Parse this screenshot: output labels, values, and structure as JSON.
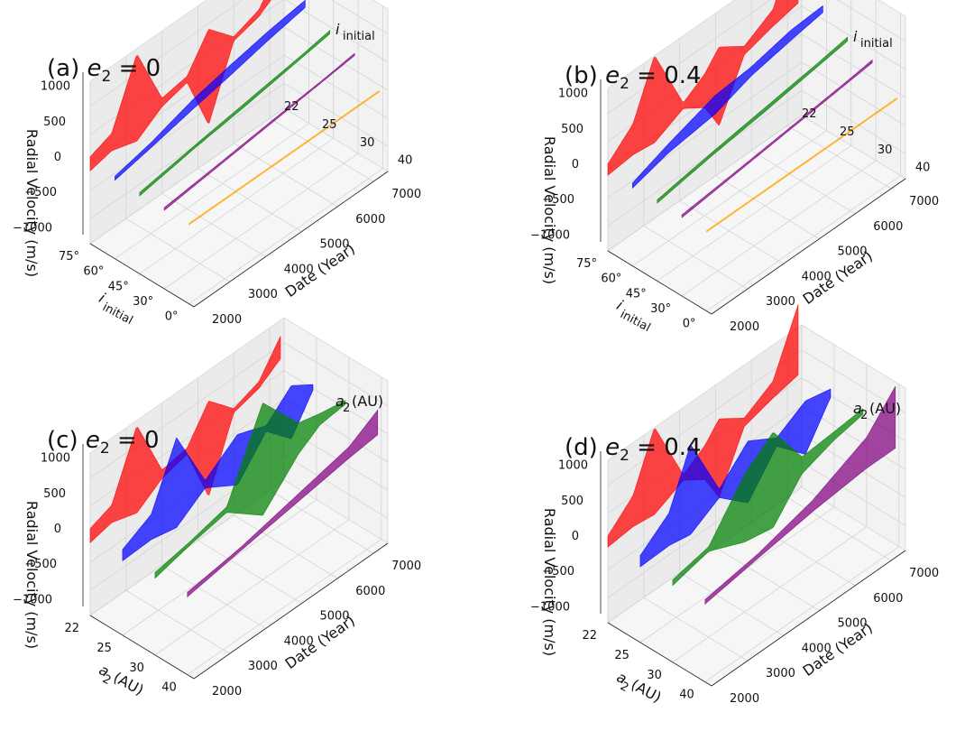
{
  "chart_data": [
    {
      "id": "a",
      "type": "3d-ribbon",
      "title": "(a) e₂ = 0",
      "panel_label": "(a)",
      "param_symbol": "e",
      "param_sub": "2",
      "param_value": "0",
      "zlabel": "Radial Velocity (m/s)",
      "xlabel": "Date (Year)",
      "ylabel_main": "i",
      "ylabel_sub": "initial",
      "ylabel_unit": "",
      "zticks": [
        "1000",
        "500",
        "0",
        "−500",
        "−1000"
      ],
      "zlim": [
        -1300,
        1300
      ],
      "xticks": [
        "2000",
        "3000",
        "4000",
        "5000",
        "6000",
        "7000"
      ],
      "xlim": [
        2000,
        7400
      ],
      "yticks": [
        "75°",
        "60°",
        "45°",
        "30°",
        "0°"
      ],
      "series": [
        {
          "name": "75°",
          "color": "#ff0000",
          "envelope": [
            [
              2000,
              -150,
              100
            ],
            [
              2600,
              -60,
              250
            ],
            [
              3300,
              -200,
              1350
            ],
            [
              4000,
              100,
              250
            ],
            [
              4700,
              220,
              330
            ],
            [
              5300,
              -800,
              900
            ],
            [
              6000,
              380,
              450
            ],
            [
              6700,
              500,
              620
            ],
            [
              7300,
              760,
              1160
            ]
          ]
        },
        {
          "name": "60°",
          "color": "#0000ff",
          "envelope": [
            [
              2000,
              -50,
              20
            ],
            [
              3000,
              80,
              170
            ],
            [
              4200,
              250,
              420
            ],
            [
              5200,
              380,
              560
            ],
            [
              6300,
              540,
              700
            ],
            [
              7300,
              660,
              790
            ]
          ]
        },
        {
          "name": "45°",
          "color": "#008000",
          "envelope": [
            [
              2000,
              -60,
              0
            ],
            [
              3500,
              100,
              150
            ],
            [
              5000,
              230,
              290
            ],
            [
              6500,
              380,
              430
            ],
            [
              7300,
              460,
              520
            ]
          ]
        },
        {
          "name": "30°",
          "color": "#800080",
          "envelope": [
            [
              2000,
              -50,
              0
            ],
            [
              3500,
              60,
              100
            ],
            [
              5000,
              170,
              210
            ],
            [
              6500,
              280,
              310
            ],
            [
              7300,
              340,
              380
            ]
          ]
        },
        {
          "name": "0°",
          "color": "#ffa500",
          "envelope": [
            [
              2000,
              -40,
              -15
            ],
            [
              7300,
              -40,
              -15
            ]
          ]
        }
      ]
    },
    {
      "id": "b",
      "type": "3d-ribbon",
      "title": "(b) e₂ = 0.4",
      "panel_label": "(b)",
      "param_symbol": "e",
      "param_sub": "2",
      "param_value": "0.4",
      "zlabel": "Radial Velocity (m/s)",
      "xlabel": "Date (Year)",
      "ylabel_main": "i",
      "ylabel_sub": "initial",
      "ylabel_unit": "",
      "zticks": [
        "1000",
        "500",
        "0",
        "−500",
        "−1000"
      ],
      "zlim": [
        -1300,
        1300
      ],
      "xticks": [
        "2000",
        "3000",
        "4000",
        "5000",
        "6000",
        "7000"
      ],
      "xlim": [
        2000,
        7400
      ],
      "yticks": [
        "75°",
        "60°",
        "45°",
        "30°",
        "0°"
      ],
      "series": [
        {
          "name": "75°",
          "color": "#ff0000",
          "envelope": [
            [
              2000,
              -100,
              100
            ],
            [
              2700,
              -50,
              500
            ],
            [
              3300,
              -100,
              1450
            ],
            [
              4100,
              150,
              250
            ],
            [
              4700,
              -100,
              500
            ],
            [
              5100,
              -600,
              800
            ],
            [
              5800,
              350,
              500
            ],
            [
              6600,
              500,
              800
            ],
            [
              7300,
              600,
              1850
            ]
          ]
        },
        {
          "name": "60°",
          "color": "#0000ff",
          "envelope": [
            [
              2000,
              -60,
              30
            ],
            [
              3000,
              120,
              280
            ],
            [
              4300,
              230,
              560
            ],
            [
              5300,
              460,
              620
            ],
            [
              6400,
              600,
              780
            ],
            [
              7300,
              700,
              820
            ]
          ]
        },
        {
          "name": "45°",
          "color": "#008000",
          "envelope": [
            [
              2000,
              -60,
              0
            ],
            [
              3500,
              100,
              160
            ],
            [
              5000,
              230,
              300
            ],
            [
              6500,
              380,
              440
            ],
            [
              7300,
              460,
              530
            ]
          ]
        },
        {
          "name": "30°",
          "color": "#800080",
          "envelope": [
            [
              2000,
              -50,
              0
            ],
            [
              3500,
              60,
              100
            ],
            [
              5000,
              170,
              210
            ],
            [
              6500,
              280,
              320
            ],
            [
              7300,
              340,
              390
            ]
          ]
        },
        {
          "name": "0°",
          "color": "#ffa500",
          "envelope": [
            [
              2000,
              -40,
              -15
            ],
            [
              7300,
              -40,
              -15
            ]
          ]
        }
      ]
    },
    {
      "id": "c",
      "type": "3d-ribbon",
      "title": "(c) e₂ = 0",
      "panel_label": "(c)",
      "param_symbol": "e",
      "param_sub": "2",
      "param_value": "0",
      "zlabel": "Radial Velocity (m/s)",
      "xlabel": "Date (Year)",
      "ylabel_main": "a",
      "ylabel_sub": "2",
      "ylabel_unit": " (AU)",
      "zticks": [
        "1000",
        "500",
        "0",
        "−500",
        "−1000"
      ],
      "zlim": [
        -1300,
        1300
      ],
      "xticks": [
        "2000",
        "3000",
        "4000",
        "5000",
        "6000",
        "7000"
      ],
      "xlim": [
        2000,
        7400
      ],
      "yticks": [
        "22",
        "25",
        "30",
        "40"
      ],
      "series": [
        {
          "name": "22 AU",
          "color": "#ff0000",
          "envelope": [
            [
              2000,
              -150,
              100
            ],
            [
              2600,
              -60,
              250
            ],
            [
              3300,
              -200,
              1350
            ],
            [
              4000,
              100,
              250
            ],
            [
              4700,
              220,
              330
            ],
            [
              5300,
              -800,
              900
            ],
            [
              6000,
              380,
              450
            ],
            [
              6700,
              500,
              620
            ],
            [
              7300,
              760,
              1160
            ]
          ]
        },
        {
          "name": "25 AU",
          "color": "#0000ff",
          "envelope": [
            [
              2000,
              -120,
              80
            ],
            [
              2800,
              -100,
              350
            ],
            [
              3500,
              -200,
              1400
            ],
            [
              4300,
              150,
              280
            ],
            [
              5200,
              -200,
              700
            ],
            [
              6000,
              400,
              500
            ],
            [
              6700,
              -50,
              900
            ],
            [
              7300,
              550,
              650
            ]
          ]
        },
        {
          "name": "30 AU",
          "color": "#008000",
          "envelope": [
            [
              2000,
              -80,
              20
            ],
            [
              3000,
              80,
              140
            ],
            [
              4000,
              200,
              300
            ],
            [
              5000,
              -300,
              1700
            ],
            [
              6000,
              350,
              900
            ],
            [
              6600,
              600,
              800
            ],
            [
              7300,
              650,
              720
            ]
          ]
        },
        {
          "name": "40 AU",
          "color": "#800080",
          "envelope": [
            [
              2000,
              -60,
              20
            ],
            [
              3500,
              100,
              160
            ],
            [
              5000,
              250,
              380
            ],
            [
              6500,
              400,
              600
            ],
            [
              7300,
              460,
              900
            ]
          ]
        }
      ]
    },
    {
      "id": "d",
      "type": "3d-ribbon",
      "title": "(d) e₂ = 0.4",
      "panel_label": "(d)",
      "param_symbol": "e",
      "param_sub": "2",
      "param_value": "0.4",
      "zlabel": "Radial Velocity (m/s)",
      "xlabel": "Date (Year)",
      "ylabel_main": "a",
      "ylabel_sub": "2",
      "ylabel_unit": " (AU)",
      "zticks": [
        "1000",
        "500",
        "0",
        "−500",
        "−1000"
      ],
      "zlim": [
        -1300,
        1300
      ],
      "xticks": [
        "2000",
        "3000",
        "4000",
        "5000",
        "6000",
        "7000"
      ],
      "xlim": [
        2000,
        7400
      ],
      "yticks": [
        "22",
        "25",
        "30",
        "40"
      ],
      "series": [
        {
          "name": "22 AU",
          "color": "#ff0000",
          "envelope": [
            [
              2000,
              -100,
              100
            ],
            [
              2700,
              -50,
              500
            ],
            [
              3300,
              -100,
              1450
            ],
            [
              4100,
              150,
              250
            ],
            [
              4700,
              -100,
              500
            ],
            [
              5100,
              -600,
              800
            ],
            [
              5800,
              350,
              500
            ],
            [
              6600,
              500,
              800
            ],
            [
              7300,
              600,
              1850
            ]
          ]
        },
        {
          "name": "25 AU",
          "color": "#0000ff",
          "envelope": [
            [
              2000,
              -100,
              100
            ],
            [
              2800,
              -80,
              500
            ],
            [
              3400,
              -150,
              1450
            ],
            [
              4200,
              150,
              300
            ],
            [
              5000,
              -300,
              800
            ],
            [
              5800,
              350,
              500
            ],
            [
              6600,
              -150,
              800
            ],
            [
              7300,
              550,
              700
            ]
          ]
        },
        {
          "name": "30 AU",
          "color": "#008000",
          "envelope": [
            [
              2000,
              -80,
              20
            ],
            [
              3000,
              80,
              160
            ],
            [
              4000,
              -200,
              1000
            ],
            [
              4800,
              -300,
              1400
            ],
            [
              5600,
              300,
              600
            ],
            [
              6500,
              500,
              650
            ],
            [
              7300,
              600,
              700
            ]
          ]
        },
        {
          "name": "40 AU",
          "color": "#800080",
          "envelope": [
            [
              2000,
              -60,
              20
            ],
            [
              3500,
              100,
              180
            ],
            [
              5000,
              250,
              450
            ],
            [
              6500,
              350,
              900
            ],
            [
              7300,
              350,
              1450
            ]
          ]
        }
      ]
    }
  ]
}
